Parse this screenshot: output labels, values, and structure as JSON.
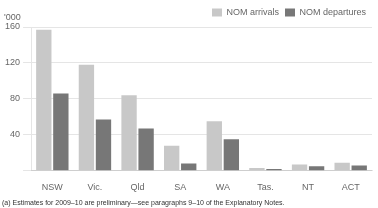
{
  "chart_data": {
    "type": "bar",
    "categories": [
      "NSW",
      "Vic.",
      "Qld",
      "SA",
      "WA",
      "Tas.",
      "NT",
      "ACT"
    ],
    "series": [
      {
        "name": "NOM arrivals",
        "color": "#c8c8c8",
        "values": [
          157,
          118,
          84,
          28,
          55,
          3,
          7,
          9
        ]
      },
      {
        "name": "NOM departures",
        "color": "#777777",
        "values": [
          86,
          57,
          47,
          8,
          35,
          2,
          5,
          6
        ]
      }
    ],
    "ylabel": "'000",
    "ylim": [
      0,
      160
    ],
    "yticks": [
      {
        "value": 0,
        "label": ""
      },
      40,
      80,
      120,
      160
    ],
    "grid": true,
    "legend": "upper right",
    "footnote": "(a) Estimates for 2009–10 are preliminary—see paragraphs 9–10 of the Explanatory Notes."
  }
}
